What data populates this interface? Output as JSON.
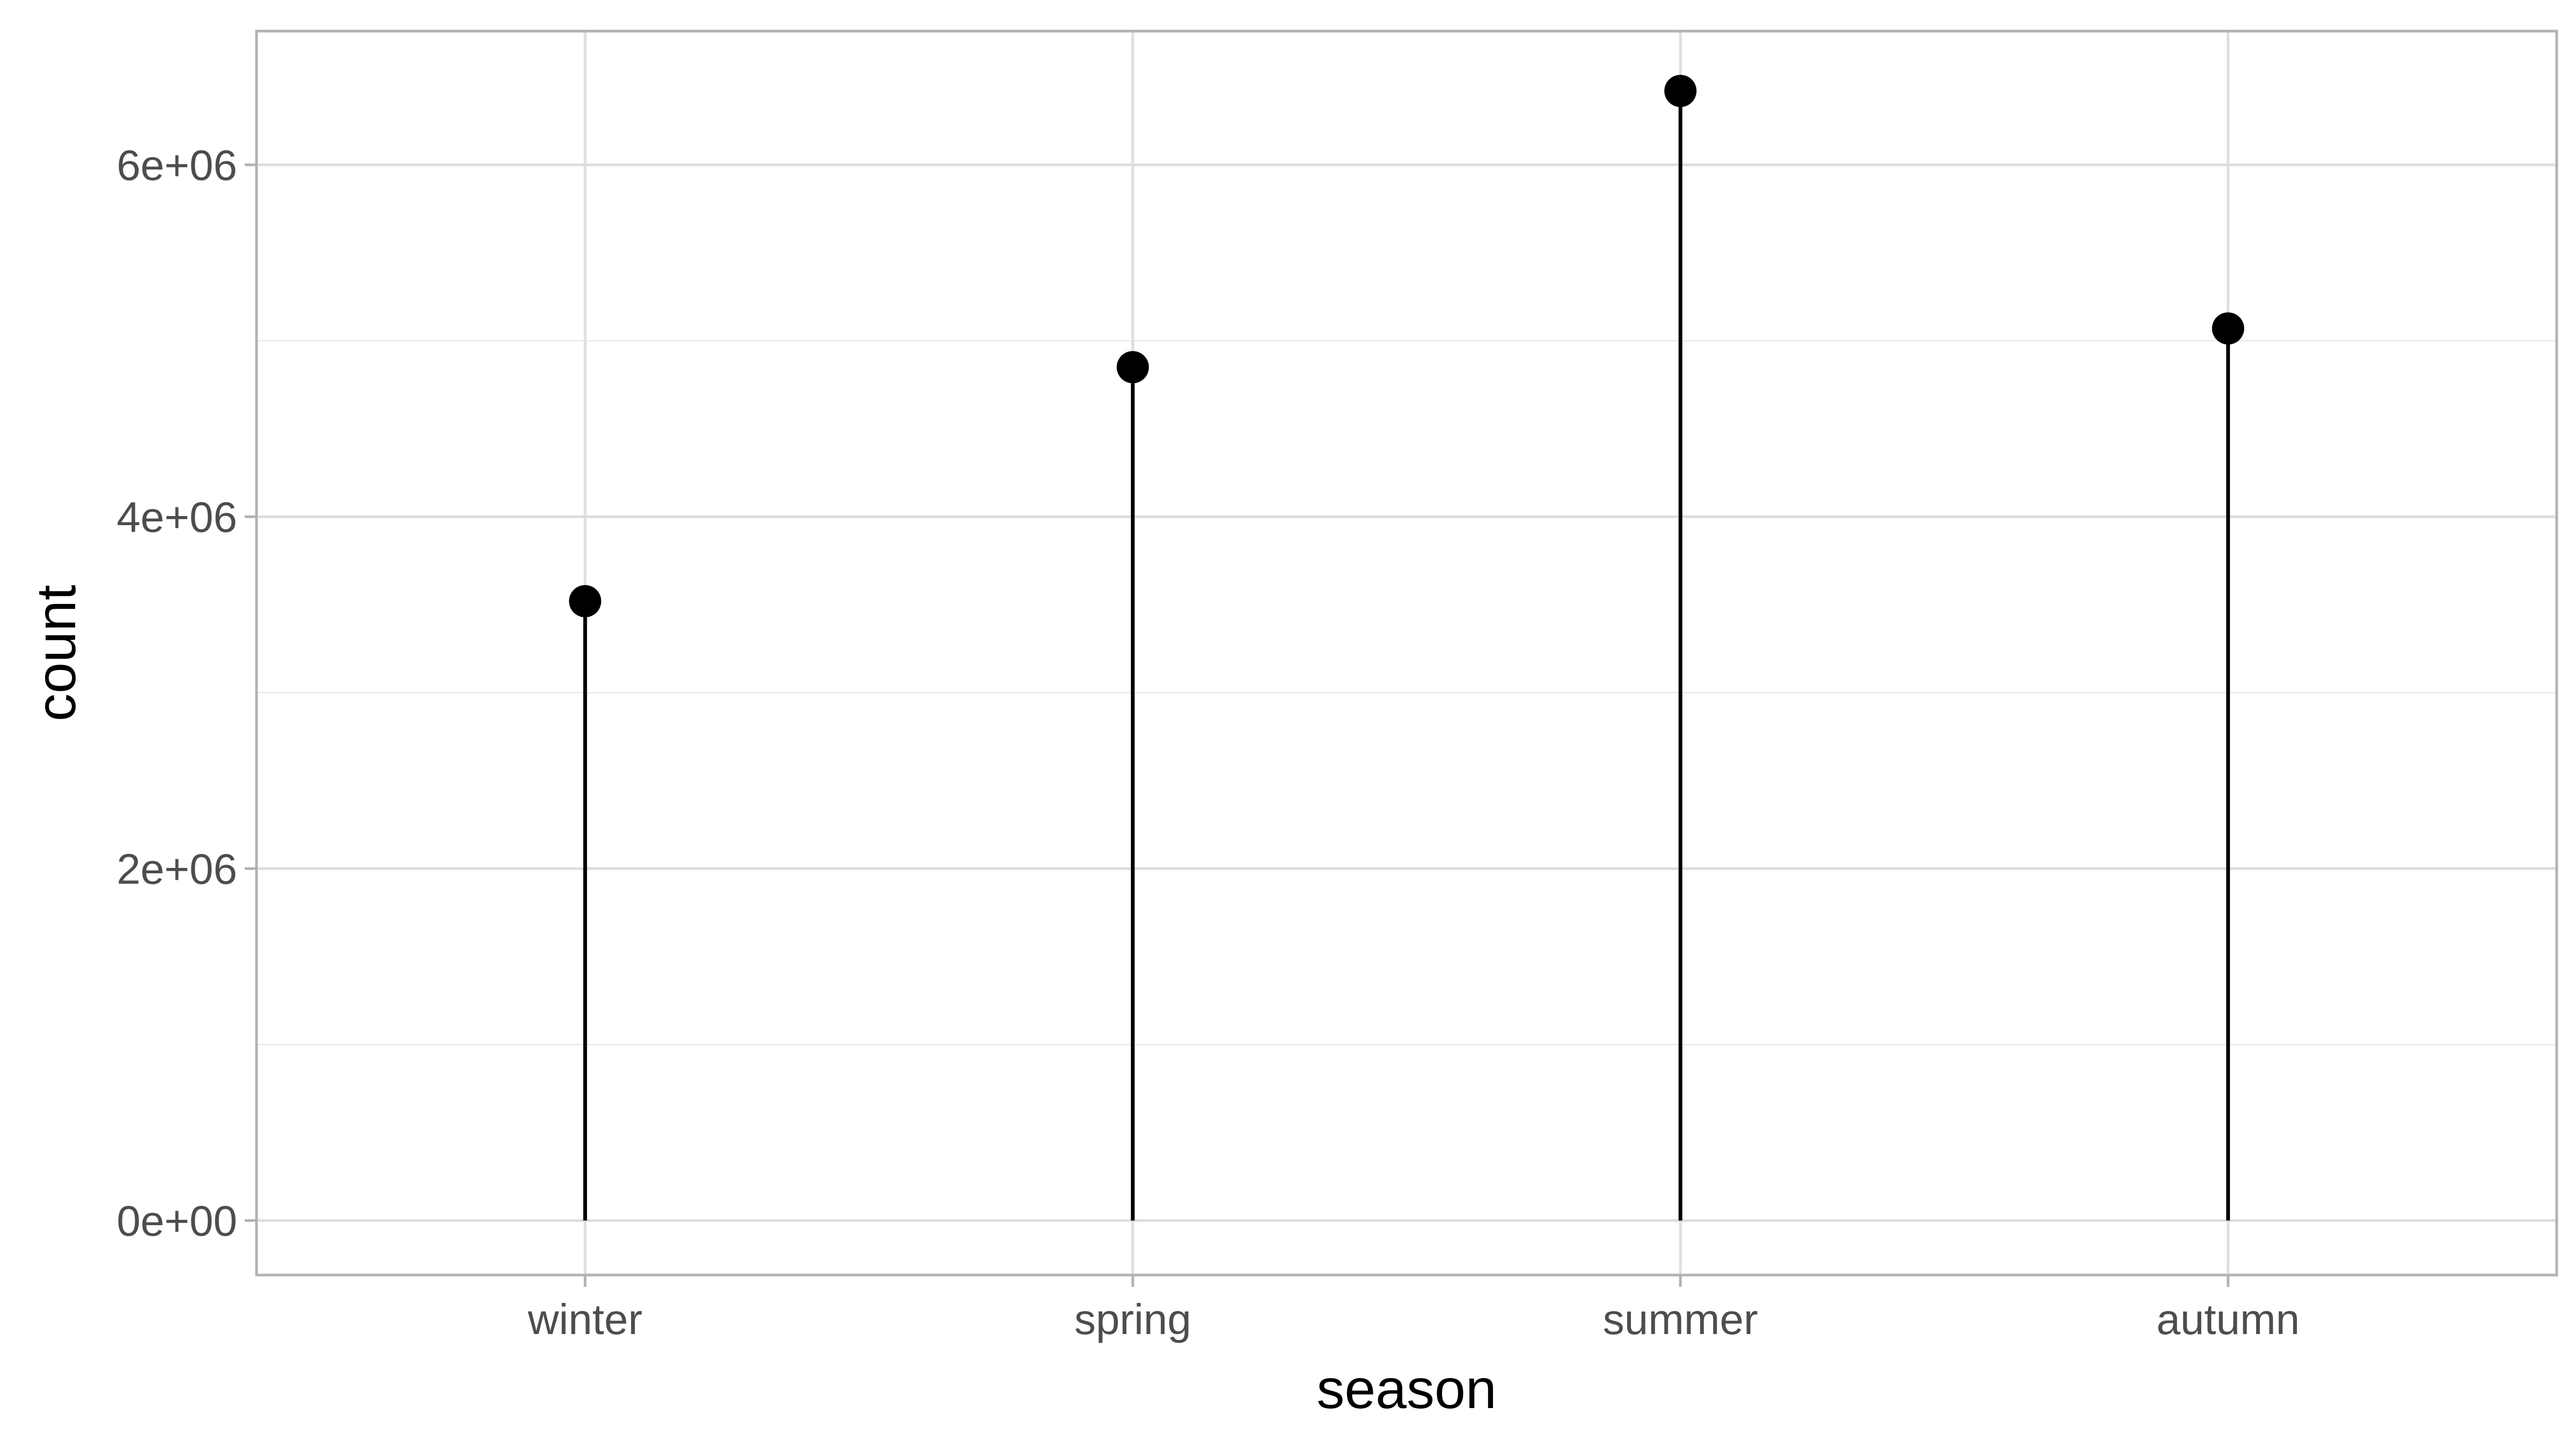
{
  "chart_data": {
    "type": "lollipop",
    "categories": [
      "winter",
      "spring",
      "summer",
      "autumn"
    ],
    "values": [
      3520000,
      4850000,
      6420000,
      5070000
    ],
    "xlabel": "season",
    "ylabel": "count",
    "ylim": [
      -310000,
      6760000
    ],
    "yticks": [
      {
        "value": 0,
        "label": "0e+00"
      },
      {
        "value": 2000000,
        "label": "2e+06"
      },
      {
        "value": 4000000,
        "label": "4e+06"
      },
      {
        "value": 6000000,
        "label": "6e+06"
      }
    ],
    "y_minor_ticks": [
      1000000,
      3000000,
      5000000
    ],
    "grid": true,
    "legend": "none",
    "colors": {
      "mark": "#000000",
      "grid_major": "#dedede",
      "grid_minor": "#ececec",
      "panel_border": "#b3b3b3",
      "tick_text": "#4d4d4d"
    }
  }
}
